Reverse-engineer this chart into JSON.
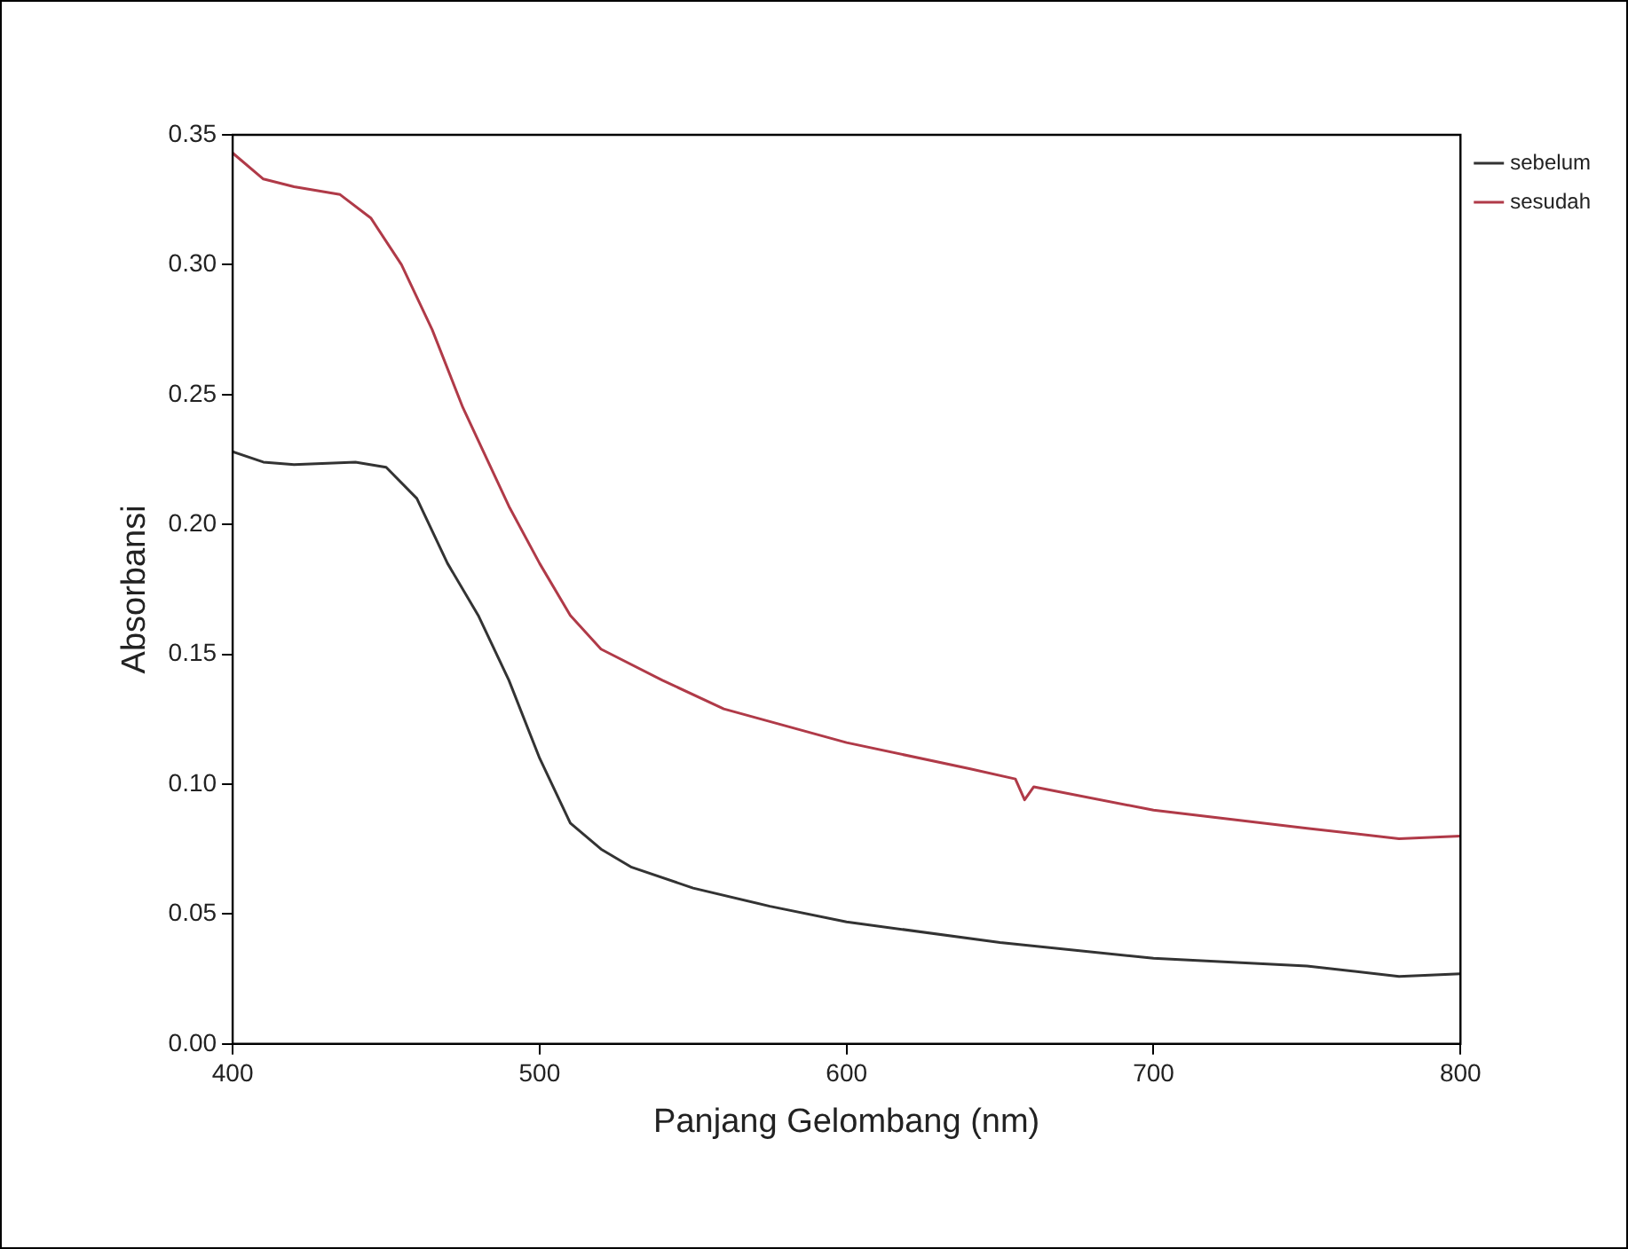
{
  "chart_data": {
    "type": "line",
    "xlabel": "Panjang Gelombang (nm)",
    "ylabel": "Absorbansi",
    "xlim": [
      400,
      800
    ],
    "xticks": [
      400,
      500,
      600,
      700,
      800
    ],
    "ylim": [
      0,
      0.35
    ],
    "yticks": [
      {
        "value": 0,
        "label": "0.00"
      },
      {
        "value": 0.05,
        "label": "0.05"
      },
      {
        "value": 0.1,
        "label": "0.10"
      },
      {
        "value": 0.15,
        "label": "0.15"
      },
      {
        "value": 0.2,
        "label": "0.20"
      },
      {
        "value": 0.25,
        "label": "0.25"
      },
      {
        "value": 0.3,
        "label": "0.30"
      },
      {
        "value": 0.35,
        "label": "0.35"
      }
    ],
    "grid": false,
    "legend": "top right",
    "marker": "none",
    "line_style": "solid",
    "series": [
      {
        "name": "sebelum",
        "color": "#333333",
        "x": [
          400,
          410,
          420,
          440,
          450,
          460,
          470,
          480,
          490,
          500,
          510,
          520,
          530,
          550,
          575,
          600,
          650,
          700,
          750,
          780,
          800
        ],
        "values": [
          0.228,
          0.224,
          0.223,
          0.224,
          0.222,
          0.21,
          0.185,
          0.165,
          0.14,
          0.11,
          0.085,
          0.075,
          0.068,
          0.06,
          0.053,
          0.047,
          0.039,
          0.033,
          0.03,
          0.026,
          0.027
        ]
      },
      {
        "name": "sesudah",
        "color": "#b03a48",
        "x": [
          400,
          410,
          420,
          435,
          445,
          455,
          465,
          475,
          490,
          500,
          510,
          520,
          540,
          560,
          600,
          640,
          655,
          658,
          661,
          700,
          750,
          780,
          800
        ],
        "values": [
          0.343,
          0.333,
          0.33,
          0.327,
          0.318,
          0.3,
          0.275,
          0.245,
          0.207,
          0.185,
          0.165,
          0.152,
          0.14,
          0.129,
          0.116,
          0.106,
          0.102,
          0.094,
          0.099,
          0.09,
          0.083,
          0.079,
          0.08
        ]
      }
    ]
  }
}
